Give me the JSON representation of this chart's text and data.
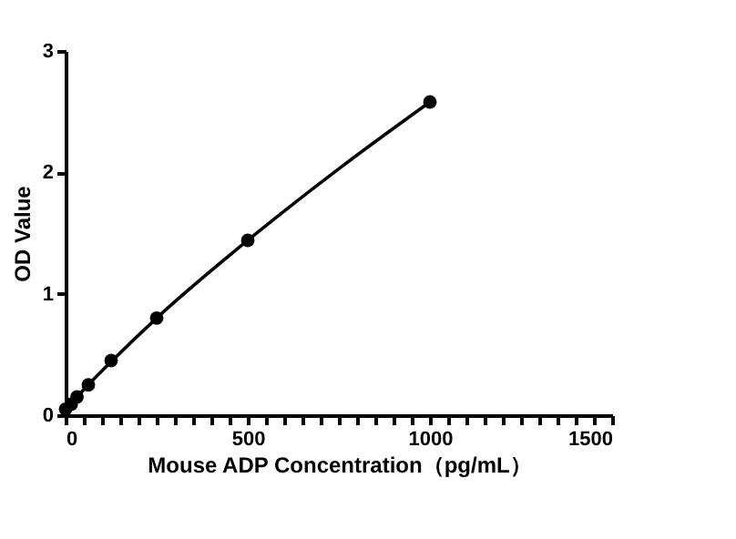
{
  "chart_data": {
    "type": "scatter",
    "xlabel": "Mouse ADP  Concentration（pg/mL）",
    "ylabel": "OD Value",
    "x": [
      0,
      15.6,
      31.25,
      62.5,
      125,
      250,
      500,
      1000
    ],
    "series": [
      {
        "color": "#000000",
        "marker": "circle",
        "values": [
          0.05,
          0.09,
          0.15,
          0.25,
          0.45,
          0.8,
          1.44,
          2.58
        ]
      },
      {
        "type": "line",
        "color": "#000000",
        "marker": "none",
        "x": [
          0,
          62.5,
          125,
          250,
          500,
          750,
          1000
        ],
        "values": [
          0.05,
          0.25,
          0.44,
          0.8,
          1.44,
          2.03,
          2.58
        ]
      }
    ],
    "xlim": [
      0,
      1500
    ],
    "ylim": [
      0,
      3
    ],
    "xticks": [
      0,
      {
        "value": 50,
        "label": null
      },
      {
        "value": 100,
        "label": null
      },
      {
        "value": 150,
        "label": null
      },
      {
        "value": 200,
        "label": null
      },
      {
        "value": 250,
        "label": null
      },
      {
        "value": 300,
        "label": null
      },
      {
        "value": 350,
        "label": null
      },
      {
        "value": 400,
        "label": null
      },
      {
        "value": 450,
        "label": null
      },
      500,
      {
        "value": 550,
        "label": null
      },
      {
        "value": 600,
        "label": null
      },
      {
        "value": 650,
        "label": null
      },
      {
        "value": 700,
        "label": null
      },
      {
        "value": 750,
        "label": null
      },
      {
        "value": 800,
        "label": null
      },
      {
        "value": 850,
        "label": null
      },
      {
        "value": 900,
        "label": null
      },
      {
        "value": 950,
        "label": null
      },
      1000,
      {
        "value": 1050,
        "label": null
      },
      {
        "value": 1100,
        "label": null
      },
      {
        "value": 1150,
        "label": null
      },
      {
        "value": 1200,
        "label": null
      },
      {
        "value": 1250,
        "label": null
      },
      {
        "value": 1300,
        "label": null
      },
      {
        "value": 1350,
        "label": null
      },
      {
        "value": 1400,
        "label": null
      },
      {
        "value": 1450,
        "label": null
      },
      1500
    ],
    "yticks": [
      0,
      1,
      2,
      3
    ],
    "grid": false
  }
}
